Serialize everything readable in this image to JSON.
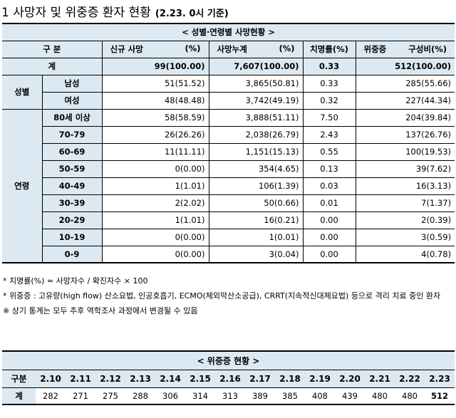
{
  "title": {
    "main": "1  사망자 및 위중증 환자 현황",
    "sub": "(2.23. 0시 기준)"
  },
  "table1": {
    "caption": "< 성별·연령별 사망현황 >",
    "headers": {
      "category": "구 분",
      "new_deaths": "신규 사망",
      "new_deaths_unit": "(%)",
      "cum_deaths": "사망누계",
      "cum_deaths_unit": "(%)",
      "fatality": "치명률(%)",
      "severe": "위중증",
      "severe_ratio": "구성비(%)"
    },
    "total": {
      "label": "계",
      "new": "99(100.00)",
      "cum": "7,607(100.00)",
      "cfr": "0.33",
      "severe": "512(100.00)"
    },
    "sex_group": "성별",
    "sex_rows": [
      {
        "label": "남성",
        "new": "51(51.52)",
        "cum": "3,865(50.81)",
        "cfr": "0.33",
        "severe": "285(55.66)"
      },
      {
        "label": "여성",
        "new": "48(48.48)",
        "cum": "3,742(49.19)",
        "cfr": "0.32",
        "severe": "227(44.34)"
      }
    ],
    "age_group": "연령",
    "age_rows": [
      {
        "label": "80세 이상",
        "new": "58(58.59)",
        "cum": "3,888(51.11)",
        "cfr": "7.50",
        "severe": "204(39.84)"
      },
      {
        "label": "70-79",
        "new": "26(26.26)",
        "cum": "2,038(26.79)",
        "cfr": "2.43",
        "severe": "137(26.76)"
      },
      {
        "label": "60-69",
        "new": "11(11.11)",
        "cum": "1,151(15.13)",
        "cfr": "0.55",
        "severe": "100(19.53)"
      },
      {
        "label": "50-59",
        "new": "0(0.00)",
        "cum": "354(4.65)",
        "cfr": "0.13",
        "severe": "39(7.62)"
      },
      {
        "label": "40-49",
        "new": "1(1.01)",
        "cum": "106(1.39)",
        "cfr": "0.03",
        "severe": "16(3.13)"
      },
      {
        "label": "30-39",
        "new": "2(2.02)",
        "cum": "50(0.66)",
        "cfr": "0.01",
        "severe": "7(1.37)"
      },
      {
        "label": "20-29",
        "new": "1(1.01)",
        "cum": "16(0.21)",
        "cfr": "0.00",
        "severe": "2(0.39)"
      },
      {
        "label": "10-19",
        "new": "0(0.00)",
        "cum": "1(0.01)",
        "cfr": "0.00",
        "severe": "3(0.59)"
      },
      {
        "label": "0-9",
        "new": "0(0.00)",
        "cum": "3(0.04)",
        "cfr": "0.00",
        "severe": "4(0.78)"
      }
    ]
  },
  "notes": {
    "n1": "* 치명률(%) = 사망자수 / 확진자수 × 100",
    "n2": "* 위중증 : 고유량(high flow) 산소요법, 인공호흡기, ECMO(체외막산소공급), CRRT(지속적신대체요법) 등으로 격리 치료 중인 환자",
    "n3": "※ 상기 통계는 모두 추후 역학조사 과정에서 변경될 수 있음"
  },
  "table2": {
    "caption": "< 위중증 현황 >",
    "row_label_header": "구분",
    "dates": [
      "2.10",
      "2.11",
      "2.12",
      "2.13",
      "2.14",
      "2.15",
      "2.16",
      "2.17",
      "2.18",
      "2.19",
      "2.20",
      "2.21",
      "2.22",
      "2.23"
    ],
    "row_label": "계",
    "values": [
      "282",
      "271",
      "275",
      "288",
      "306",
      "314",
      "313",
      "389",
      "385",
      "408",
      "439",
      "480",
      "480",
      "512"
    ]
  }
}
